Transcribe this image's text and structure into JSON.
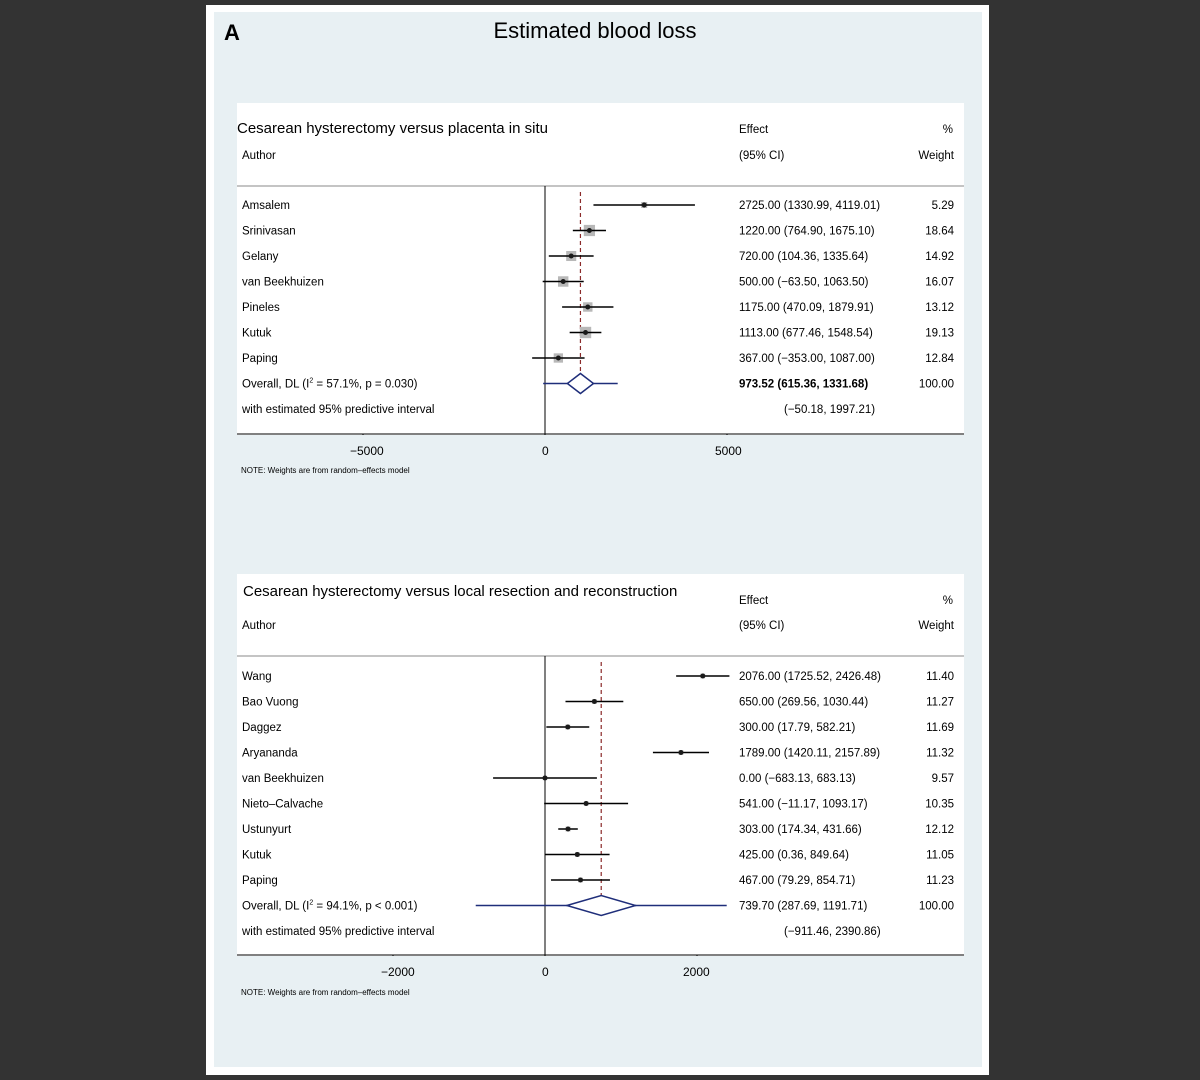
{
  "figure": {
    "panel_letter": "A",
    "title": "Estimated blood loss"
  },
  "chart_data": [
    {
      "type": "forest",
      "title": "Cesarean hysterectomy versus placenta in situ",
      "columns": {
        "author": "Author",
        "effect_line1": "Effect",
        "effect_line2": "(95% CI)",
        "weight_line1": "%",
        "weight_line2": "Weight"
      },
      "xlim": [
        -8500,
        9000
      ],
      "xticks": [
        -5000,
        0,
        5000
      ],
      "tick_labels": [
        "−5000",
        "0",
        "5000"
      ],
      "null_line": 0,
      "studies": [
        {
          "author": "Amsalem",
          "effect": 2725.0,
          "lo": 1330.99,
          "hi": 4119.01,
          "ci_text": "2725.00 (1330.99, 4119.01)",
          "weight": 5.29,
          "weight_text": "5.29"
        },
        {
          "author": "Srinivasan",
          "effect": 1220.0,
          "lo": 764.9,
          "hi": 1675.1,
          "ci_text": "1220.00 (764.90, 1675.10)",
          "weight": 18.64,
          "weight_text": "18.64"
        },
        {
          "author": "Gelany",
          "effect": 720.0,
          "lo": 104.36,
          "hi": 1335.64,
          "ci_text": "720.00 (104.36, 1335.64)",
          "weight": 14.92,
          "weight_text": "14.92"
        },
        {
          "author": "van Beekhuizen",
          "effect": 500.0,
          "lo": -63.5,
          "hi": 1063.5,
          "ci_text": "500.00 (−63.50, 1063.50)",
          "weight": 16.07,
          "weight_text": "16.07"
        },
        {
          "author": "Pineles",
          "effect": 1175.0,
          "lo": 470.09,
          "hi": 1879.91,
          "ci_text": "1175.00 (470.09, 1879.91)",
          "weight": 13.12,
          "weight_text": "13.12"
        },
        {
          "author": "Kutuk",
          "effect": 1113.0,
          "lo": 677.46,
          "hi": 1548.54,
          "ci_text": "1113.00 (677.46, 1548.54)",
          "weight": 19.13,
          "weight_text": "19.13"
        },
        {
          "author": "Paping",
          "effect": 367.0,
          "lo": -353.0,
          "hi": 1087.0,
          "ci_text": "367.00 (−353.00, 1087.00)",
          "weight": 12.84,
          "weight_text": "12.84"
        }
      ],
      "overall": {
        "label_pre": "Overall, DL (I",
        "label_sup": "2",
        "label_post": " = 57.1%, p = 0.030)",
        "effect": 973.52,
        "lo": 615.36,
        "hi": 1331.68,
        "ci_text": "973.52 (615.36, 1331.68)",
        "weight_text": "100.00",
        "bold": true
      },
      "prediction": {
        "label": "with estimated 95% predictive interval",
        "lo": -50.18,
        "hi": 1997.21,
        "ci_text": "(−50.18, 1997.21)"
      },
      "note": "NOTE: Weights are from random–effects model"
    },
    {
      "type": "forest",
      "title": "Cesarean hysterectomy versus local resection and reconstruction",
      "columns": {
        "author": "Author",
        "effect_line1": "Effect",
        "effect_line2": "(95% CI)",
        "weight_line1": "%",
        "weight_line2": "Weight"
      },
      "xlim": [
        -4000,
        4000
      ],
      "xticks": [
        -2000,
        0,
        2000
      ],
      "tick_labels": [
        "−2000",
        "0",
        "2000"
      ],
      "null_line": 0,
      "studies": [
        {
          "author": "Wang",
          "effect": 2076.0,
          "lo": 1725.52,
          "hi": 2426.48,
          "ci_text": "2076.00 (1725.52, 2426.48)",
          "weight": 11.4,
          "weight_text": "11.40"
        },
        {
          "author": "Bao Vuong",
          "effect": 650.0,
          "lo": 269.56,
          "hi": 1030.44,
          "ci_text": "650.00 (269.56, 1030.44)",
          "weight": 11.27,
          "weight_text": "11.27"
        },
        {
          "author": "Daggez",
          "effect": 300.0,
          "lo": 17.79,
          "hi": 582.21,
          "ci_text": "300.00 (17.79, 582.21)",
          "weight": 11.69,
          "weight_text": "11.69"
        },
        {
          "author": "Aryananda",
          "effect": 1789.0,
          "lo": 1420.11,
          "hi": 2157.89,
          "ci_text": "1789.00 (1420.11, 2157.89)",
          "weight": 11.32,
          "weight_text": "11.32"
        },
        {
          "author": "van Beekhuizen",
          "effect": 0.0,
          "lo": -683.13,
          "hi": 683.13,
          "ci_text": "0.00 (−683.13, 683.13)",
          "weight": 9.57,
          "weight_text": "9.57"
        },
        {
          "author": "Nieto–Calvache",
          "effect": 541.0,
          "lo": -11.17,
          "hi": 1093.17,
          "ci_text": "541.00 (−11.17, 1093.17)",
          "weight": 10.35,
          "weight_text": "10.35"
        },
        {
          "author": "Ustunyurt",
          "effect": 303.0,
          "lo": 174.34,
          "hi": 431.66,
          "ci_text": "303.00 (174.34, 431.66)",
          "weight": 12.12,
          "weight_text": "12.12"
        },
        {
          "author": "Kutuk",
          "effect": 425.0,
          "lo": 0.36,
          "hi": 849.64,
          "ci_text": "425.00 (0.36, 849.64)",
          "weight": 11.05,
          "weight_text": "11.05"
        },
        {
          "author": "Paping",
          "effect": 467.0,
          "lo": 79.29,
          "hi": 854.71,
          "ci_text": "467.00 (79.29, 854.71)",
          "weight": 11.23,
          "weight_text": "11.23"
        }
      ],
      "overall": {
        "label_pre": "Overall, DL (I",
        "label_sup": "2",
        "label_post": " = 94.1%, p < 0.001)",
        "effect": 739.7,
        "lo": 287.69,
        "hi": 1191.71,
        "ci_text": "739.70 (287.69, 1191.71)",
        "weight_text": "100.00",
        "bold": false
      },
      "prediction": {
        "label": "with estimated 95% predictive interval",
        "lo": -911.46,
        "hi": 2390.86,
        "ci_text": "(−911.46, 2390.86)"
      },
      "note": "NOTE: Weights are from random–effects model"
    }
  ],
  "colors": {
    "page_background": "#333333",
    "figure_background": "#e8f0f3",
    "panel_background": "#ffffff",
    "marker_box": "#b8b8b8",
    "point": "#1a1a1a",
    "ci_line": "#000000",
    "overall_diamond": "#1f2e7a",
    "overall_line": "#8b2a2a",
    "axis": "#000000"
  }
}
